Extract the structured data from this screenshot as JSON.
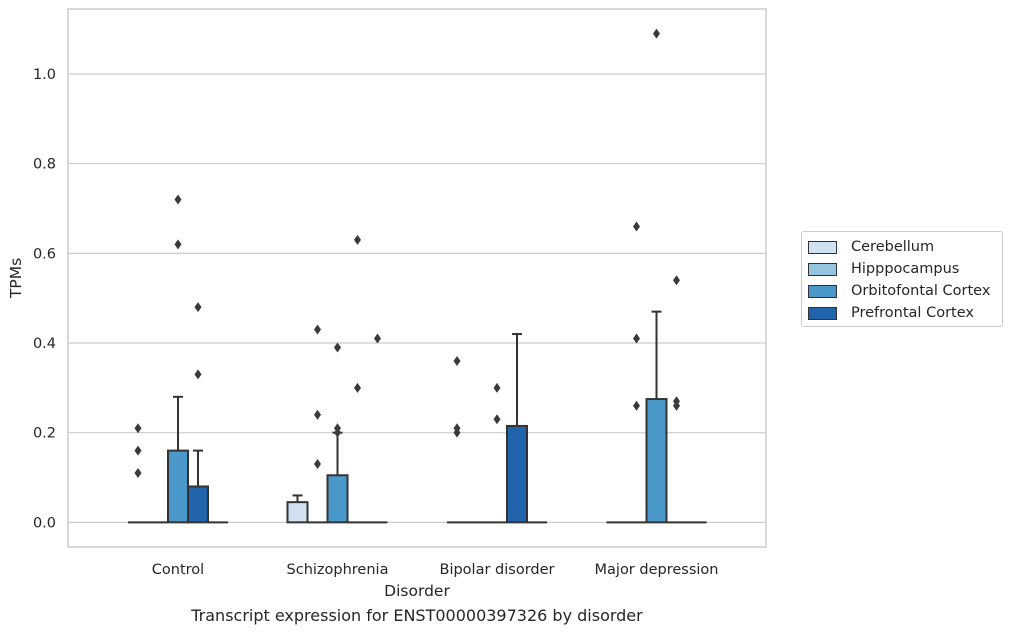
{
  "chart_data": {
    "type": "bar",
    "title": "",
    "xlabel": "Disorder",
    "ylabel": "TPMs",
    "ylim": [
      -0.055,
      1.145
    ],
    "yticks": [
      0.0,
      0.2,
      0.4,
      0.6,
      0.8,
      1.0
    ],
    "ytick_labels": [
      "0.0",
      "0.2",
      "0.4",
      "0.6",
      "0.8",
      "1.0"
    ],
    "grid": "horizontal",
    "legend_position": "right",
    "categories": [
      "Control",
      "Schizophrenia",
      "Bipolar disorder",
      "Major depression"
    ],
    "series": [
      {
        "name": "Cerebellum",
        "color": "#d0e1f2",
        "values": [
          0.0,
          0.045,
          0.0,
          0.0
        ],
        "error_upper": [
          null,
          0.06,
          null,
          null
        ],
        "outliers": [
          [
            0.11,
            0.16,
            0.21
          ],
          [],
          [
            0.2,
            0.21,
            0.36
          ],
          []
        ]
      },
      {
        "name": "Hipppocampus",
        "color": "#94c4df",
        "values": [
          0.0,
          0.0,
          0.0,
          0.0
        ],
        "error_upper": [
          null,
          null,
          null,
          null
        ],
        "outliers": [
          [],
          [
            0.13,
            0.24,
            0.43
          ],
          [],
          [
            0.26,
            0.41,
            0.66
          ]
        ]
      },
      {
        "name": "Orbitofontal Cortex",
        "color": "#4a98c9",
        "values": [
          0.16,
          0.105,
          0.0,
          0.275
        ],
        "error_upper": [
          0.28,
          0.2,
          null,
          0.47
        ],
        "outliers": [
          [
            0.62,
            0.72
          ],
          [
            0.2,
            0.21,
            0.39
          ],
          [
            0.23,
            0.3
          ],
          [
            1.09
          ]
        ]
      },
      {
        "name": "Prefrontal Cortex",
        "color": "#2164ab",
        "values": [
          0.08,
          0.0,
          0.215,
          0.0
        ],
        "error_upper": [
          0.16,
          null,
          0.42,
          null
        ],
        "outliers": [
          [
            0.33,
            0.48
          ],
          [
            0.3,
            0.63
          ],
          [],
          [
            0.26,
            0.27,
            0.54
          ]
        ]
      },
      {
        "name": "",
        "color": "#2164ab",
        "values": [
          0.0,
          0.0,
          0.0,
          0.0
        ],
        "error_upper": [
          null,
          null,
          null,
          null
        ],
        "outliers": [
          [],
          [
            0.41
          ],
          [],
          []
        ]
      }
    ]
  },
  "legend": {
    "items": [
      {
        "label": "Cerebellum",
        "color": "#d0e1f2"
      },
      {
        "label": "Hipppocampus",
        "color": "#94c4df"
      },
      {
        "label": "Orbitofontal Cortex",
        "color": "#4a98c9"
      },
      {
        "label": "Prefrontal Cortex",
        "color": "#2164ab"
      }
    ]
  },
  "caption": "Transcript expression for ENST00000397326 by disorder"
}
